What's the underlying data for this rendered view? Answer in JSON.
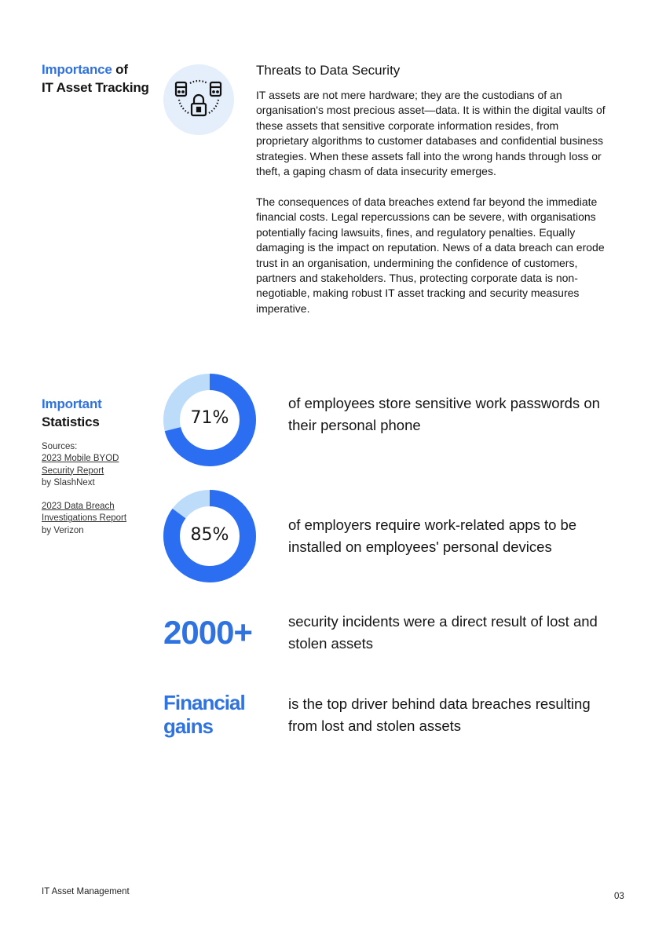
{
  "colors": {
    "accent": "#2f73e0",
    "donut_fill": "#2b6ef2",
    "donut_track": "#bcdcfa",
    "icon_bg": "#e5eefb"
  },
  "section1": {
    "heading_accent": "Importance",
    "heading_rest": " of",
    "heading_line2": "IT Asset Tracking",
    "icon": "servers-lock-icon",
    "title": "Threats to Data Security",
    "paragraph1": "IT assets are not mere hardware; they are the custodians of an organisation's most precious asset—data. It is within the digital vaults of these assets that sensitive corporate information resides, from proprietary algorithms to customer databases and confidential business strategies. When these assets fall into the wrong hands through loss or theft, a gaping chasm of data insecurity emerges.",
    "paragraph2": "The consequences of data breaches extend far beyond the immediate financial costs. Legal repercussions can be severe, with organisations potentially facing lawsuits, fines, and regulatory penalties. Equally damaging is the impact on reputation. News of a data breach can erode trust in an organisation, undermining the confidence of customers, partners and stakeholders. Thus, protecting corporate data is non-negotiable, making robust IT asset tracking and security measures imperative."
  },
  "section2": {
    "heading_accent": "Important",
    "heading_line2": "Statistics",
    "sources_label": "Sources:",
    "source1_title": "2023 Mobile BYOD Security Report",
    "source1_by": "by SlashNext",
    "source2_title": "2023 Data Breach Investigations Report",
    "source2_by": "by Verizon",
    "stats": [
      {
        "value": "71%",
        "percent": 71,
        "text": "of employees store sensitive work passwords on their personal phone"
      },
      {
        "value": "85%",
        "percent": 85,
        "text": "of employers require work-related apps to be installed on employees' personal devices"
      },
      {
        "value": "2000+",
        "text": "security incidents were a direct result of lost and stolen assets"
      },
      {
        "value": "Financial gains",
        "text": "is the top driver behind data breaches resulting from lost and stolen assets"
      }
    ]
  },
  "footer": {
    "title": "IT Asset Management",
    "page": "03"
  }
}
